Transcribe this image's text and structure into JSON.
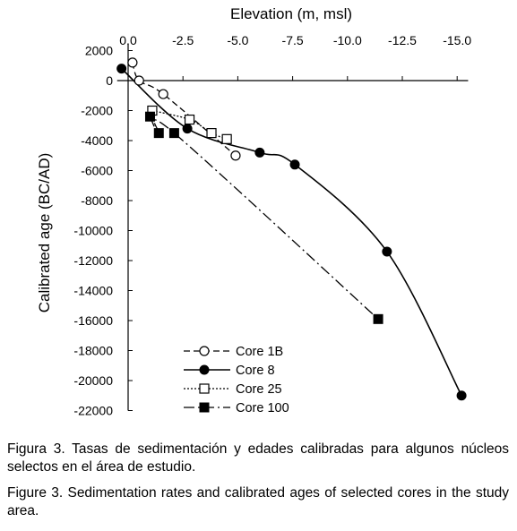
{
  "chart_data": {
    "type": "line",
    "xlabel": "Elevation (m, msl)",
    "ylabel": "Calibrated age (BC/AD)",
    "x_axis_position": "top",
    "x_reversed": true,
    "xlim": [
      0.5,
      -15.5
    ],
    "ylim": [
      2000,
      -22000
    ],
    "x_ticks": [
      0.0,
      -2.5,
      -5.0,
      -7.5,
      -10.0,
      -12.5,
      -15.0
    ],
    "x_tick_labels": [
      "0.0",
      "-2.5",
      "-5.0",
      "-7.5",
      "-10.0",
      "-12.5",
      "-15.0"
    ],
    "y_ticks": [
      2000,
      0,
      -2000,
      -4000,
      -6000,
      -8000,
      -10000,
      -12000,
      -14000,
      -16000,
      -18000,
      -20000,
      -22000
    ],
    "y_tick_labels": [
      "2000",
      "0",
      "-2000",
      "-4000",
      "-6000",
      "-8000",
      "-10000",
      "-12000",
      "-14000",
      "-16000",
      "-18000",
      "-20000",
      "-22000"
    ],
    "grid": false,
    "legend_position": "bottom-left",
    "series": [
      {
        "name": "Core 1B",
        "marker": "open-circle",
        "line": "dashed",
        "x": [
          -0.2,
          -0.5,
          -1.6,
          -4.9
        ],
        "y": [
          1200,
          0,
          -900,
          -5000
        ]
      },
      {
        "name": "Core 8",
        "marker": "filled-circle",
        "line": "solid",
        "x": [
          0.3,
          -2.7,
          -6.0,
          -7.6,
          -11.8,
          -15.2
        ],
        "y": [
          800,
          -3200,
          -4800,
          -5600,
          -11400,
          -21000
        ]
      },
      {
        "name": "Core 25",
        "marker": "open-square",
        "line": "dotted",
        "x": [
          -1.1,
          -2.8,
          -3.8,
          -4.5
        ],
        "y": [
          -2000,
          -2600,
          -3500,
          -3900
        ]
      },
      {
        "name": "Core 100",
        "marker": "filled-square",
        "line": "dash-dot",
        "x": [
          -1.0,
          -1.4,
          -2.1,
          -11.4
        ],
        "y": [
          -2400,
          -3500,
          -3500,
          -15900
        ]
      }
    ]
  },
  "captions": {
    "es_label": "Figura 3.",
    "es_text": " Tasas de sedimentación y edades calibradas para algunos núcleos selectos en el área de estudio.",
    "en_label": "Figure 3.",
    "en_text": " Sedimentation rates and calibrated ages of selected cores in the study area."
  }
}
